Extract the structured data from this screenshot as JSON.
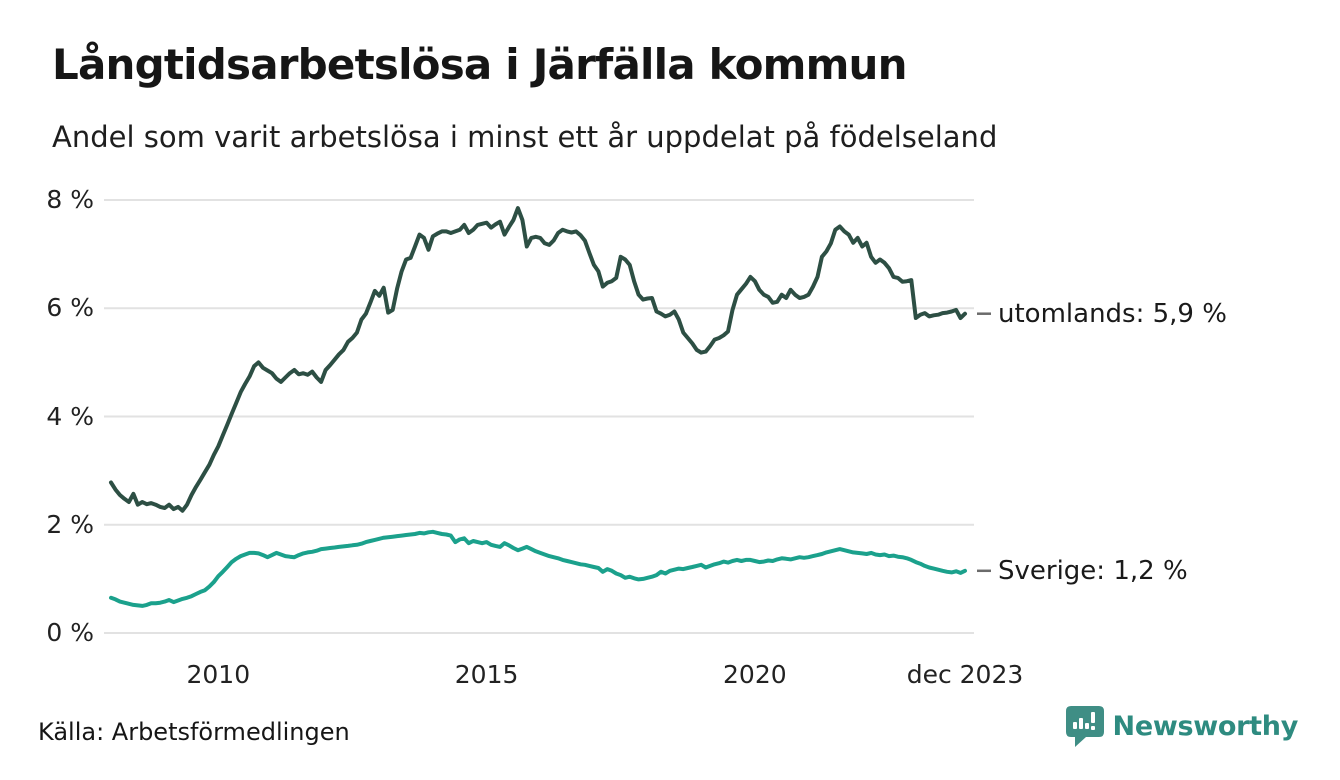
{
  "header": {
    "title": "Långtidsarbetslösa i Järfälla kommun",
    "subtitle": "Andel som varit arbetslösa i minst ett år uppdelat på födelseland"
  },
  "chart_data": {
    "type": "line",
    "title": "Långtidsarbetslösa i Järfälla kommun",
    "subtitle": "Andel som varit arbetslösa i minst ett år uppdelat på födelseland",
    "x_start": "2008-01",
    "x_end": "2023-12",
    "x_freq": "monthly",
    "ylim": [
      0,
      8
    ],
    "grid": "horizontal",
    "legend_position": "end-of-line-labels",
    "yticks": [
      {
        "value": 0,
        "label": "0 %"
      },
      {
        "value": 2,
        "label": "2 %"
      },
      {
        "value": 4,
        "label": "4 %"
      },
      {
        "value": 6,
        "label": "6 %"
      },
      {
        "value": 8,
        "label": "8 %"
      }
    ],
    "xticks": [
      {
        "month_index": 24,
        "label": "2010"
      },
      {
        "month_index": 84,
        "label": "2015"
      },
      {
        "month_index": 144,
        "label": "2020"
      },
      {
        "month_index": 191,
        "label": "dec 2023"
      }
    ],
    "series": [
      {
        "name": "utomlands",
        "color": "#2d4f44",
        "end_label": "utomlands: 5,9 %",
        "values": [
          2.78,
          2.65,
          2.55,
          2.48,
          2.42,
          2.57,
          2.37,
          2.42,
          2.38,
          2.4,
          2.37,
          2.33,
          2.31,
          2.37,
          2.29,
          2.33,
          2.26,
          2.37,
          2.55,
          2.7,
          2.83,
          2.97,
          3.11,
          3.29,
          3.45,
          3.65,
          3.85,
          4.05,
          4.25,
          4.45,
          4.6,
          4.74,
          4.93,
          5.0,
          4.9,
          4.85,
          4.8,
          4.7,
          4.64,
          4.72,
          4.8,
          4.86,
          4.78,
          4.8,
          4.77,
          4.83,
          4.72,
          4.64,
          4.86,
          4.95,
          5.05,
          5.15,
          5.23,
          5.38,
          5.45,
          5.55,
          5.79,
          5.9,
          6.1,
          6.32,
          6.23,
          6.38,
          5.92,
          5.97,
          6.37,
          6.68,
          6.9,
          6.93,
          7.14,
          7.36,
          7.3,
          7.08,
          7.33,
          7.38,
          7.42,
          7.42,
          7.39,
          7.42,
          7.45,
          7.54,
          7.39,
          7.45,
          7.54,
          7.56,
          7.58,
          7.49,
          7.55,
          7.6,
          7.36,
          7.5,
          7.63,
          7.85,
          7.63,
          7.14,
          7.3,
          7.32,
          7.3,
          7.2,
          7.17,
          7.25,
          7.39,
          7.45,
          7.42,
          7.4,
          7.42,
          7.35,
          7.25,
          7.02,
          6.8,
          6.68,
          6.4,
          6.47,
          6.5,
          6.56,
          6.95,
          6.9,
          6.8,
          6.5,
          6.25,
          6.16,
          6.18,
          6.19,
          5.94,
          5.9,
          5.85,
          5.88,
          5.94,
          5.79,
          5.55,
          5.45,
          5.35,
          5.23,
          5.18,
          5.2,
          5.3,
          5.42,
          5.45,
          5.5,
          5.57,
          5.97,
          6.25,
          6.35,
          6.45,
          6.58,
          6.5,
          6.34,
          6.25,
          6.21,
          6.1,
          6.12,
          6.25,
          6.19,
          6.34,
          6.25,
          6.19,
          6.21,
          6.25,
          6.4,
          6.58,
          6.95,
          7.05,
          7.2,
          7.45,
          7.51,
          7.42,
          7.36,
          7.21,
          7.3,
          7.14,
          7.21,
          6.95,
          6.84,
          6.9,
          6.84,
          6.74,
          6.58,
          6.56,
          6.49,
          6.5,
          6.52,
          5.82,
          5.88,
          5.91,
          5.85,
          5.87,
          5.88,
          5.91,
          5.92,
          5.94,
          5.97,
          5.82,
          5.9
        ]
      },
      {
        "name": "Sverige",
        "color": "#1ba18c",
        "end_label": "Sverige: 1,2 %",
        "values": [
          0.65,
          0.62,
          0.58,
          0.56,
          0.54,
          0.52,
          0.51,
          0.5,
          0.52,
          0.55,
          0.55,
          0.56,
          0.58,
          0.61,
          0.57,
          0.6,
          0.63,
          0.65,
          0.68,
          0.72,
          0.76,
          0.79,
          0.86,
          0.94,
          1.05,
          1.13,
          1.22,
          1.31,
          1.37,
          1.42,
          1.45,
          1.48,
          1.48,
          1.47,
          1.44,
          1.4,
          1.44,
          1.48,
          1.45,
          1.42,
          1.41,
          1.4,
          1.44,
          1.47,
          1.49,
          1.5,
          1.52,
          1.55,
          1.56,
          1.57,
          1.58,
          1.59,
          1.6,
          1.61,
          1.62,
          1.63,
          1.65,
          1.68,
          1.7,
          1.72,
          1.74,
          1.76,
          1.77,
          1.78,
          1.79,
          1.8,
          1.81,
          1.82,
          1.83,
          1.85,
          1.84,
          1.86,
          1.87,
          1.85,
          1.83,
          1.82,
          1.8,
          1.68,
          1.73,
          1.75,
          1.66,
          1.7,
          1.68,
          1.66,
          1.68,
          1.63,
          1.61,
          1.59,
          1.66,
          1.62,
          1.57,
          1.53,
          1.56,
          1.59,
          1.55,
          1.51,
          1.48,
          1.45,
          1.42,
          1.4,
          1.38,
          1.35,
          1.33,
          1.31,
          1.29,
          1.27,
          1.26,
          1.24,
          1.22,
          1.2,
          1.13,
          1.18,
          1.15,
          1.1,
          1.07,
          1.02,
          1.04,
          1.01,
          0.99,
          1.0,
          1.02,
          1.04,
          1.07,
          1.13,
          1.1,
          1.15,
          1.17,
          1.19,
          1.18,
          1.2,
          1.22,
          1.24,
          1.26,
          1.21,
          1.24,
          1.27,
          1.29,
          1.32,
          1.3,
          1.33,
          1.35,
          1.33,
          1.35,
          1.35,
          1.33,
          1.31,
          1.32,
          1.34,
          1.33,
          1.36,
          1.38,
          1.37,
          1.36,
          1.38,
          1.4,
          1.39,
          1.4,
          1.42,
          1.44,
          1.46,
          1.49,
          1.51,
          1.53,
          1.55,
          1.53,
          1.51,
          1.49,
          1.48,
          1.47,
          1.46,
          1.48,
          1.45,
          1.44,
          1.45,
          1.42,
          1.43,
          1.41,
          1.4,
          1.38,
          1.35,
          1.31,
          1.28,
          1.24,
          1.21,
          1.19,
          1.17,
          1.15,
          1.13,
          1.12,
          1.14,
          1.11,
          1.15
        ]
      }
    ]
  },
  "footer": {
    "source": "Källa: Arbetsförmedlingen",
    "brand": "Newsworthy",
    "brand_color": "#2e8b80",
    "brand_icon_color": "#3f8e85",
    "brand_icon": "speech-bubble-bar-chart-icon"
  }
}
